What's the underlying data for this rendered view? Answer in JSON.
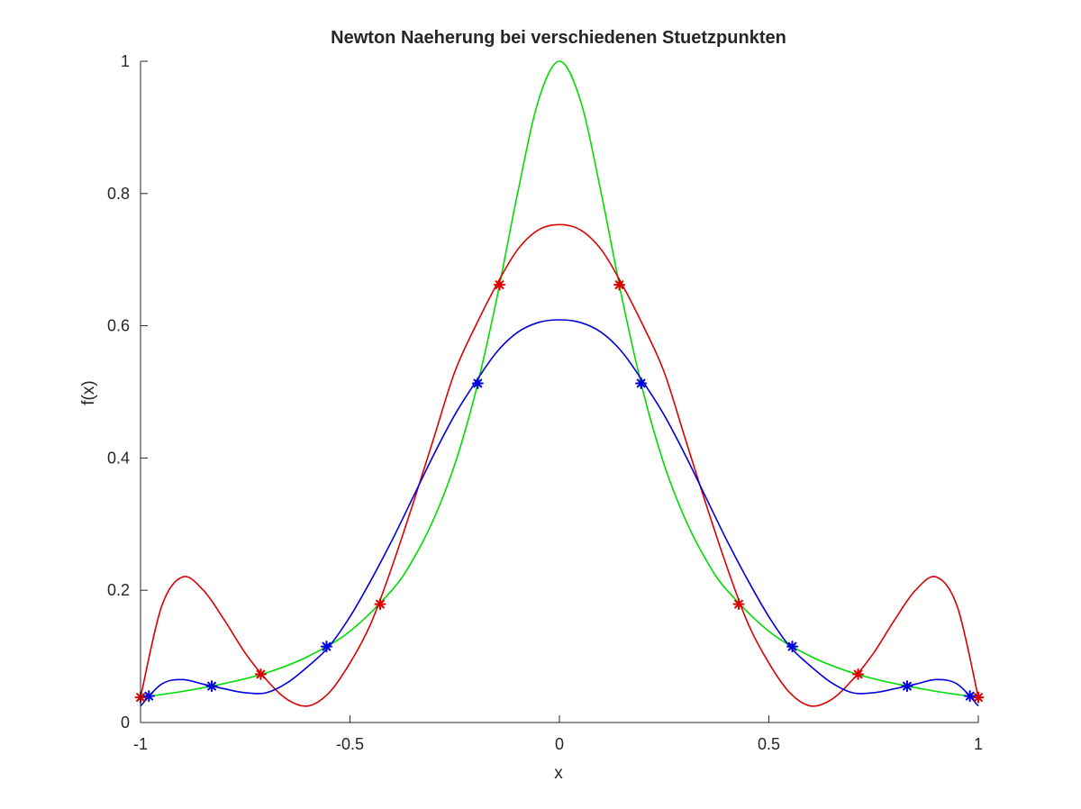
{
  "chart_data": {
    "type": "line",
    "title": "Newton Naeherung bei verschiedenen Stuetzpunkten",
    "xlabel": "x",
    "ylabel": "f(x)",
    "xlim": [
      -1,
      1
    ],
    "ylim": [
      0,
      1
    ],
    "xticks": [
      -1,
      -0.5,
      0,
      0.5,
      1
    ],
    "xtick_labels": [
      "-1",
      "-0.5",
      "0",
      "0.5",
      "1"
    ],
    "yticks": [
      0,
      0.2,
      0.4,
      0.6,
      0.8,
      1
    ],
    "ytick_labels": [
      "0",
      "0.2",
      "0.4",
      "0.6",
      "0.8",
      "1"
    ],
    "grid": false,
    "legend": "none",
    "series": [
      {
        "color": "#00dd00",
        "style": "line",
        "x": [
          -1,
          -0.9,
          -0.8,
          -0.7,
          -0.6,
          -0.5,
          -0.4,
          -0.35,
          -0.3,
          -0.25,
          -0.2,
          -0.15,
          -0.1,
          -0.05,
          0,
          0.05,
          0.1,
          0.15,
          0.2,
          0.25,
          0.3,
          0.35,
          0.4,
          0.5,
          0.6,
          0.7,
          0.8,
          0.9,
          1
        ],
        "y": [
          0.038,
          0.047,
          0.059,
          0.075,
          0.1,
          0.138,
          0.2,
          0.246,
          0.308,
          0.39,
          0.5,
          0.64,
          0.8,
          0.941,
          1.0,
          0.941,
          0.8,
          0.64,
          0.5,
          0.39,
          0.308,
          0.246,
          0.2,
          0.138,
          0.1,
          0.075,
          0.059,
          0.047,
          0.038
        ]
      },
      {
        "color": "#dd0000",
        "style": "line",
        "x": [
          -1,
          -0.95,
          -0.9,
          -0.85,
          -0.8,
          -0.75,
          -0.7,
          -0.65,
          -0.6,
          -0.55,
          -0.5,
          -0.45,
          -0.4,
          -0.35,
          -0.3,
          -0.25,
          -0.2,
          -0.15,
          -0.1,
          -0.05,
          0,
          0.05,
          0.1,
          0.15,
          0.2,
          0.25,
          0.3,
          0.35,
          0.4,
          0.45,
          0.5,
          0.55,
          0.6,
          0.65,
          0.7,
          0.75,
          0.8,
          0.85,
          0.9,
          0.95,
          1
        ],
        "y": [
          0.038,
          0.175,
          0.22,
          0.2,
          0.155,
          0.105,
          0.065,
          0.035,
          0.025,
          0.045,
          0.09,
          0.15,
          0.235,
          0.33,
          0.43,
          0.53,
          0.6,
          0.662,
          0.715,
          0.745,
          0.753,
          0.745,
          0.715,
          0.662,
          0.6,
          0.53,
          0.43,
          0.33,
          0.235,
          0.15,
          0.09,
          0.045,
          0.025,
          0.035,
          0.065,
          0.105,
          0.155,
          0.2,
          0.22,
          0.175,
          0.038
        ]
      },
      {
        "color": "#0000dd",
        "style": "line",
        "x": [
          -1,
          -0.95,
          -0.9,
          -0.85,
          -0.8,
          -0.75,
          -0.7,
          -0.65,
          -0.6,
          -0.55,
          -0.5,
          -0.45,
          -0.4,
          -0.35,
          -0.3,
          -0.25,
          -0.2,
          -0.15,
          -0.1,
          -0.05,
          0,
          0.05,
          0.1,
          0.15,
          0.2,
          0.25,
          0.3,
          0.35,
          0.4,
          0.45,
          0.5,
          0.55,
          0.6,
          0.65,
          0.7,
          0.75,
          0.8,
          0.85,
          0.9,
          0.95,
          1
        ],
        "y": [
          0.025,
          0.058,
          0.065,
          0.058,
          0.051,
          0.045,
          0.045,
          0.06,
          0.085,
          0.115,
          0.16,
          0.215,
          0.275,
          0.34,
          0.405,
          0.465,
          0.515,
          0.56,
          0.59,
          0.605,
          0.609,
          0.605,
          0.59,
          0.56,
          0.515,
          0.465,
          0.405,
          0.34,
          0.275,
          0.215,
          0.16,
          0.115,
          0.085,
          0.06,
          0.045,
          0.045,
          0.051,
          0.058,
          0.065,
          0.058,
          0.025
        ]
      },
      {
        "color": "#dd0000",
        "style": "markers",
        "marker": "*",
        "x": [
          -1,
          -0.713,
          -0.428,
          -0.143,
          0.143,
          0.428,
          0.713,
          1
        ],
        "y": [
          0.038,
          0.073,
          0.179,
          0.662,
          0.662,
          0.179,
          0.073,
          0.038
        ]
      },
      {
        "color": "#0000dd",
        "style": "markers",
        "marker": "*",
        "x": [
          -0.98,
          -0.83,
          -0.556,
          -0.195,
          0.195,
          0.556,
          0.83,
          0.98
        ],
        "y": [
          0.04,
          0.055,
          0.115,
          0.513,
          0.513,
          0.115,
          0.055,
          0.04
        ]
      }
    ]
  }
}
